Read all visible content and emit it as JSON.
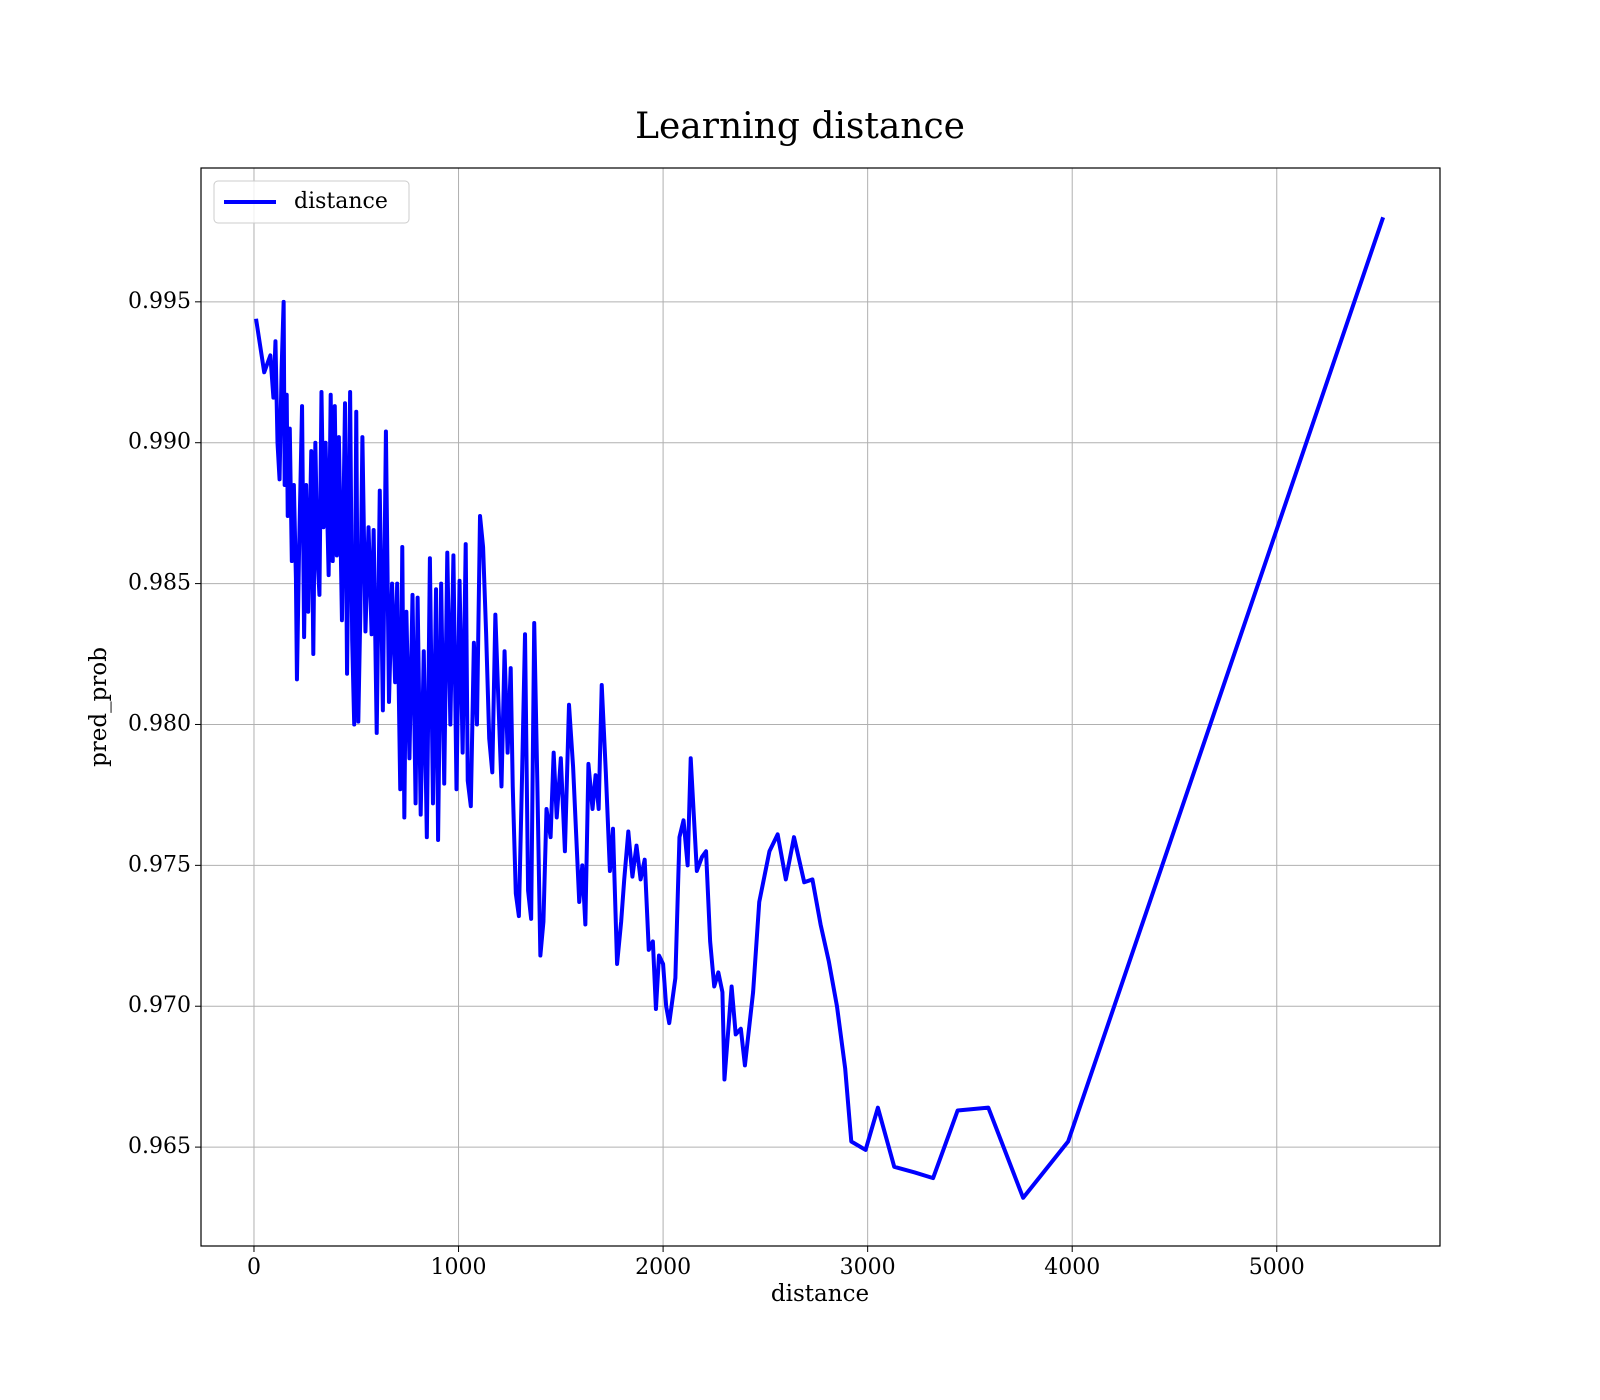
{
  "chart_data": {
    "type": "line",
    "title": "Learning distance",
    "xlabel": "distance",
    "ylabel": "pred_prob",
    "x": [
      10,
      50,
      80,
      95,
      105,
      115,
      125,
      135,
      145,
      150,
      160,
      165,
      175,
      185,
      195,
      205,
      210,
      220,
      235,
      245,
      255,
      265,
      280,
      290,
      300,
      310,
      320,
      330,
      340,
      350,
      365,
      375,
      385,
      395,
      405,
      415,
      430,
      445,
      455,
      470,
      480,
      490,
      500,
      510,
      520,
      530,
      545,
      560,
      575,
      585,
      600,
      615,
      630,
      645,
      660,
      675,
      690,
      700,
      715,
      725,
      735,
      745,
      760,
      775,
      790,
      800,
      815,
      830,
      845,
      860,
      875,
      890,
      900,
      915,
      930,
      945,
      960,
      975,
      990,
      1005,
      1020,
      1035,
      1045,
      1060,
      1075,
      1090,
      1105,
      1120,
      1135,
      1150,
      1165,
      1180,
      1195,
      1210,
      1225,
      1240,
      1255,
      1265,
      1280,
      1295,
      1310,
      1325,
      1340,
      1355,
      1370,
      1385,
      1400,
      1415,
      1430,
      1450,
      1465,
      1480,
      1500,
      1520,
      1540,
      1560,
      1575,
      1590,
      1605,
      1620,
      1635,
      1655,
      1670,
      1685,
      1700,
      1720,
      1740,
      1755,
      1775,
      1795,
      1810,
      1830,
      1850,
      1870,
      1890,
      1910,
      1930,
      1950,
      1965,
      1980,
      2000,
      2015,
      2030,
      2060,
      2080,
      2100,
      2120,
      2135,
      2165,
      2190,
      2210,
      2230,
      2250,
      2270,
      2290,
      2300,
      2335,
      2355,
      2380,
      2400,
      2440,
      2470,
      2520,
      2560,
      2600,
      2640,
      2690,
      2730,
      2770,
      2810,
      2850,
      2890,
      2920,
      2990,
      3050,
      3130,
      3230,
      3320,
      3440,
      3590,
      3760,
      3980,
      5520
    ],
    "series": [
      {
        "name": "distance",
        "color": "#0000ff",
        "values": [
          0.9944,
          0.9925,
          0.9931,
          0.9916,
          0.9936,
          0.99,
          0.9887,
          0.9926,
          0.995,
          0.9885,
          0.9917,
          0.9874,
          0.9905,
          0.9858,
          0.9885,
          0.9852,
          0.9816,
          0.986,
          0.9913,
          0.9831,
          0.9885,
          0.984,
          0.9897,
          0.9825,
          0.99,
          0.986,
          0.9846,
          0.9918,
          0.987,
          0.99,
          0.9853,
          0.9917,
          0.9858,
          0.9913,
          0.986,
          0.9902,
          0.9837,
          0.9914,
          0.9818,
          0.9918,
          0.983,
          0.98,
          0.9911,
          0.9801,
          0.984,
          0.9902,
          0.9833,
          0.987,
          0.9832,
          0.9869,
          0.9797,
          0.9883,
          0.9805,
          0.9904,
          0.9808,
          0.985,
          0.9815,
          0.985,
          0.9777,
          0.9863,
          0.9767,
          0.984,
          0.9788,
          0.9846,
          0.9772,
          0.9845,
          0.9768,
          0.9826,
          0.976,
          0.9859,
          0.9772,
          0.9848,
          0.9759,
          0.985,
          0.9779,
          0.9861,
          0.98,
          0.986,
          0.9777,
          0.9851,
          0.979,
          0.9864,
          0.978,
          0.9771,
          0.9829,
          0.98,
          0.9874,
          0.9863,
          0.9832,
          0.9795,
          0.9783,
          0.9839,
          0.9808,
          0.9778,
          0.9826,
          0.979,
          0.982,
          0.9778,
          0.974,
          0.9732,
          0.978,
          0.9832,
          0.9741,
          0.9731,
          0.9836,
          0.978,
          0.9718,
          0.973,
          0.977,
          0.976,
          0.979,
          0.9767,
          0.9788,
          0.9755,
          0.9807,
          0.9785,
          0.9761,
          0.9737,
          0.975,
          0.9729,
          0.9786,
          0.977,
          0.9782,
          0.977,
          0.9814,
          0.9783,
          0.9748,
          0.9763,
          0.9715,
          0.973,
          0.9745,
          0.9762,
          0.9746,
          0.9757,
          0.9745,
          0.9752,
          0.972,
          0.9723,
          0.9699,
          0.9718,
          0.9715,
          0.97,
          0.9694,
          0.971,
          0.976,
          0.9766,
          0.975,
          0.9788,
          0.9748,
          0.9753,
          0.9755,
          0.9723,
          0.9707,
          0.9712,
          0.9705,
          0.9674,
          0.9707,
          0.969,
          0.9692,
          0.9679,
          0.9705,
          0.9737,
          0.9755,
          0.9761,
          0.9745,
          0.976,
          0.9744,
          0.9745,
          0.9729,
          0.9716,
          0.97,
          0.9678,
          0.9652,
          0.9649,
          0.9664,
          0.9643,
          0.9641,
          0.9639,
          0.9663,
          0.9664,
          0.9632,
          0.9652,
          0.998
        ]
      }
    ],
    "xlim": [
      -259,
      5798
    ],
    "xticks": [
      0,
      1000,
      2000,
      3000,
      4000,
      5000
    ],
    "ylim": [
      0.96149,
      0.99975
    ],
    "yticks": [
      {
        "value": 0.965,
        "label": "0.965"
      },
      {
        "value": 0.97,
        "label": "0.970"
      },
      {
        "value": 0.975,
        "label": "0.975"
      },
      {
        "value": 0.98,
        "label": "0.980"
      },
      {
        "value": 0.985,
        "label": "0.985"
      },
      {
        "value": 0.99,
        "label": "0.990"
      },
      {
        "value": 0.995,
        "label": "0.995"
      }
    ],
    "grid": true,
    "legend": "upper left"
  }
}
